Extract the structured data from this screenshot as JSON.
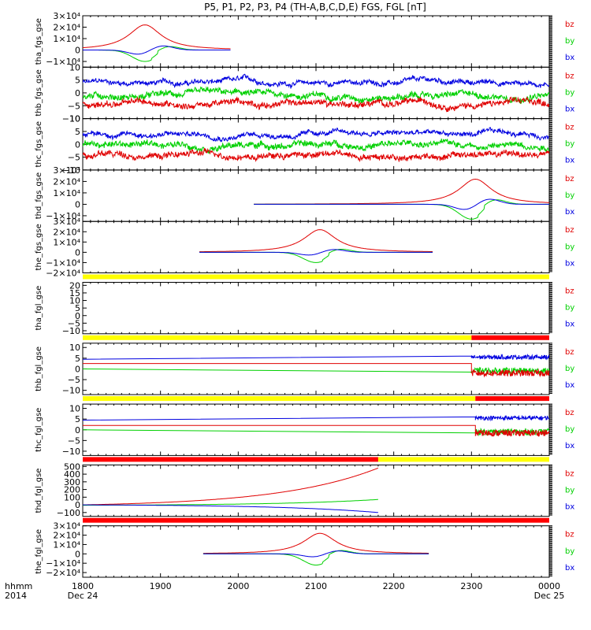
{
  "title": "P5, P1, P2, P3, P4 (TH-A,B,C,D,E) FGS, FGL [nT]",
  "time_axis": {
    "row1_label": "hhmm",
    "row2_label": "2014",
    "ticks": [
      {
        "hhmm": "1800",
        "date": "Dec 24"
      },
      {
        "hhmm": "1900",
        "date": ""
      },
      {
        "hhmm": "2000",
        "date": ""
      },
      {
        "hhmm": "2100",
        "date": ""
      },
      {
        "hhmm": "2200",
        "date": ""
      },
      {
        "hhmm": "2300",
        "date": ""
      },
      {
        "hhmm": "0000",
        "date": "Dec 25"
      }
    ]
  },
  "legend_labels": [
    "bz",
    "by",
    "bx"
  ],
  "colors": {
    "bz": "#e00000",
    "by": "#00d000",
    "bx": "#0000e0",
    "flag_yellow": "#ffff00",
    "flag_red": "#ff0000"
  },
  "chart_data": [
    {
      "type": "line",
      "ylabel": "tha_fgs_gse",
      "ylim": [
        -15000,
        30000
      ],
      "yticks": [
        30000,
        20000,
        10000,
        0,
        -10000
      ],
      "yticklabels": [
        "3×10⁴",
        "2×10⁴",
        "1×10⁴",
        "0",
        "−1×10⁴"
      ],
      "series": [
        {
          "name": "bz",
          "kind": "pulse_pos",
          "center": 1880,
          "peak": 22000,
          "start": 1800,
          "end": 1990
        },
        {
          "name": "by",
          "kind": "pulse_neg",
          "center": 1880,
          "peak": -10000,
          "start": 1800,
          "end": 1990
        },
        {
          "name": "bx",
          "kind": "pulse_bip",
          "center": 1890,
          "peak": 4000,
          "start": 1800,
          "end": 1990
        }
      ]
    },
    {
      "type": "line",
      "ylabel": "thb_fgs_gse",
      "ylim": [
        -10,
        10
      ],
      "yticks": [
        10,
        5,
        0,
        -5,
        -10
      ],
      "yticklabels": [
        "10",
        "5",
        "0",
        "−5",
        "−10"
      ],
      "series": [
        {
          "name": "bx",
          "kind": "noisy",
          "base": 4,
          "noise": 1.5,
          "start": 1800,
          "end": 2400
        },
        {
          "name": "by",
          "kind": "noisy",
          "base": -1,
          "noise": 2,
          "start": 1800,
          "end": 2400
        },
        {
          "name": "bz",
          "kind": "noisy",
          "base": -4,
          "noise": 2,
          "start": 1800,
          "end": 2400
        }
      ]
    },
    {
      "type": "line",
      "ylabel": "thc_fgs_gse",
      "ylim": [
        -10,
        10
      ],
      "yticks": [
        10,
        5,
        0,
        -5,
        -10
      ],
      "yticklabels": [
        "10",
        "5",
        "0",
        "−5",
        "−10"
      ],
      "series": [
        {
          "name": "bx",
          "kind": "noisy",
          "base": 4,
          "noise": 1.5,
          "start": 1800,
          "end": 2400
        },
        {
          "name": "by",
          "kind": "noisy",
          "base": 0,
          "noise": 2,
          "start": 1800,
          "end": 2400
        },
        {
          "name": "bz",
          "kind": "noisy",
          "base": -4,
          "noise": 2,
          "start": 1800,
          "end": 2400
        }
      ]
    },
    {
      "type": "line",
      "ylabel": "thd_fgs_gse",
      "ylim": [
        -15000,
        30000
      ],
      "yticks": [
        30000,
        20000,
        10000,
        0,
        -10000
      ],
      "yticklabels": [
        "3×10⁴",
        "2×10⁴",
        "1×10⁴",
        "0",
        "−1×10⁴"
      ],
      "series": [
        {
          "name": "bz",
          "kind": "pulse_pos",
          "center": 2305,
          "peak": 22000,
          "start": 2020,
          "end": 2400
        },
        {
          "name": "by",
          "kind": "pulse_neg",
          "center": 2300,
          "peak": -13000,
          "start": 2020,
          "end": 2400
        },
        {
          "name": "bx",
          "kind": "pulse_bip",
          "center": 2310,
          "peak": 5000,
          "start": 2020,
          "end": 2400
        }
      ]
    },
    {
      "type": "line",
      "ylabel": "the_fgs_gse",
      "ylim": [
        -20000,
        30000
      ],
      "yticks": [
        30000,
        20000,
        10000,
        0,
        -10000,
        -20000
      ],
      "yticklabels": [
        "3×10⁴",
        "2×10⁴",
        "1×10⁴",
        "0",
        "−1×10⁴",
        "−2×10⁴"
      ],
      "series": [
        {
          "name": "bz",
          "kind": "pulse_pos",
          "center": 2105,
          "peak": 22000,
          "start": 1950,
          "end": 2250
        },
        {
          "name": "by",
          "kind": "pulse_neg",
          "center": 2100,
          "peak": -10000,
          "start": 1950,
          "end": 2250
        },
        {
          "name": "bx",
          "kind": "pulse_bip",
          "center": 2110,
          "peak": 3000,
          "start": 1950,
          "end": 2250
        }
      ]
    },
    {
      "type": "line",
      "ylabel": "tha_fgl_gse",
      "ylim": [
        -12,
        22
      ],
      "yticks": [
        20,
        15,
        10,
        5,
        0,
        -5,
        -10
      ],
      "yticklabels": [
        "20",
        "15",
        "10",
        "5",
        "0",
        "−5",
        "−10"
      ],
      "flag": [
        {
          "color": "yellow",
          "start": 1800,
          "end": 2400
        }
      ],
      "series": []
    },
    {
      "type": "line",
      "ylabel": "thb_fgl_gse",
      "ylim": [
        -12,
        12
      ],
      "yticks": [
        10,
        5,
        0,
        -5,
        -10
      ],
      "yticklabels": [
        "10",
        "5",
        "0",
        "−5",
        "−10"
      ],
      "flag": [
        {
          "color": "yellow",
          "start": 1800,
          "end": 2300
        },
        {
          "color": "red",
          "start": 2300,
          "end": 2400
        }
      ],
      "series": [
        {
          "name": "bx",
          "kind": "line_then_noisy",
          "start_val": 4.5,
          "end_val": 6,
          "switch": 2300,
          "noisy_base": 5.5,
          "noise": 1
        },
        {
          "name": "by",
          "kind": "line_then_noisy",
          "start_val": 0,
          "end_val": -1.5,
          "switch": 2300,
          "noisy_base": -1,
          "noise": 1.5
        },
        {
          "name": "bz",
          "kind": "line_then_noisy",
          "start_val": 2.5,
          "end_val": 2.5,
          "switch": 2300,
          "noisy_base": -2,
          "noise": 1.5
        }
      ]
    },
    {
      "type": "line",
      "ylabel": "thc_fgl_gse",
      "ylim": [
        -12,
        12
      ],
      "yticks": [
        10,
        5,
        0,
        -5,
        -10
      ],
      "yticklabels": [
        "10",
        "5",
        "0",
        "−5",
        "−10"
      ],
      "flag": [
        {
          "color": "yellow",
          "start": 1800,
          "end": 2305
        },
        {
          "color": "red",
          "start": 2305,
          "end": 2400
        }
      ],
      "series": [
        {
          "name": "bx",
          "kind": "line_then_noisy",
          "start_val": 4.5,
          "end_val": 6,
          "switch": 2305,
          "noisy_base": 5.5,
          "noise": 1
        },
        {
          "name": "by",
          "kind": "line_then_noisy",
          "start_val": 0,
          "end_val": -1.5,
          "switch": 2305,
          "noisy_base": -1,
          "noise": 1.5
        },
        {
          "name": "bz",
          "kind": "line_then_noisy",
          "start_val": 2,
          "end_val": 2,
          "switch": 2305,
          "noisy_base": -1.5,
          "noise": 1.5
        }
      ]
    },
    {
      "type": "line",
      "ylabel": "thd_fgl_gse",
      "ylim": [
        -150,
        520
      ],
      "yticks": [
        500,
        400,
        300,
        200,
        100,
        0,
        -100
      ],
      "yticklabels": [
        "500",
        "400",
        "300",
        "200",
        "100",
        "0",
        "−100"
      ],
      "flag": [
        {
          "color": "red",
          "start": 1800,
          "end": 2180
        },
        {
          "color": "yellow",
          "start": 2180,
          "end": 2400
        }
      ],
      "series": [
        {
          "name": "bz",
          "kind": "exp_rise",
          "start": 1800,
          "end": 2180,
          "v0": 0,
          "v1": 480
        },
        {
          "name": "by",
          "kind": "exp_rise",
          "start": 1800,
          "end": 2180,
          "v0": -5,
          "v1": 70
        },
        {
          "name": "bx",
          "kind": "exp_fall",
          "start": 1800,
          "end": 2180,
          "v0": 0,
          "v1": -100
        }
      ]
    },
    {
      "type": "line",
      "ylabel": "the_fgl_gse",
      "ylim": [
        -25000,
        30000
      ],
      "yticks": [
        30000,
        20000,
        10000,
        0,
        -10000,
        -20000
      ],
      "yticklabels": [
        "3×10⁴",
        "2×10⁴",
        "1×10⁴",
        "0",
        "−1×10⁴",
        "−2×10⁴"
      ],
      "flag": [
        {
          "color": "red",
          "start": 1800,
          "end": 2400
        }
      ],
      "series": [
        {
          "name": "bz",
          "kind": "pulse_pos",
          "center": 2105,
          "peak": 22000,
          "start": 1955,
          "end": 2245
        },
        {
          "name": "by",
          "kind": "pulse_neg",
          "center": 2100,
          "peak": -12000,
          "start": 1955,
          "end": 2245
        },
        {
          "name": "bx",
          "kind": "pulse_bip",
          "center": 2115,
          "peak": 3500,
          "start": 1955,
          "end": 2245
        }
      ]
    }
  ]
}
